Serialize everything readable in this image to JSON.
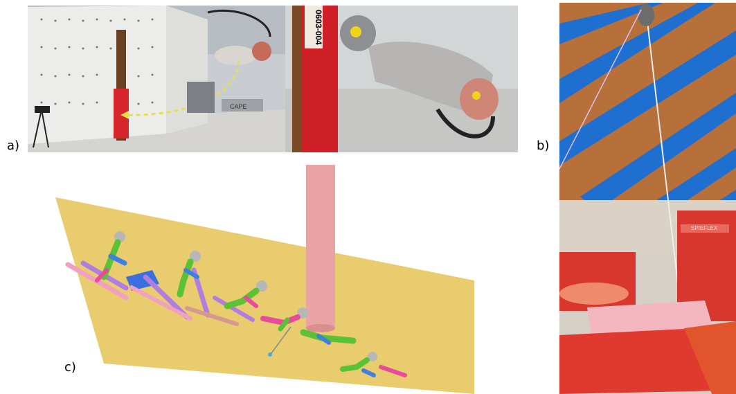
{
  "labels": {
    "a": "a)",
    "b": "b)",
    "c": "c)"
  },
  "photo_a_left": {
    "wall_marker": "CAPE"
  },
  "photo_a_right": {
    "pole_id": "0603-004"
  },
  "photo_b": {
    "mat_brand": "SPIEFLEX"
  },
  "colors": {
    "floor": "#e8cc6e",
    "pole": "#e9a3a3",
    "mat_red": "#d8372e",
    "roof_blue": "#1f6fd0",
    "wood": "#b8703a"
  }
}
